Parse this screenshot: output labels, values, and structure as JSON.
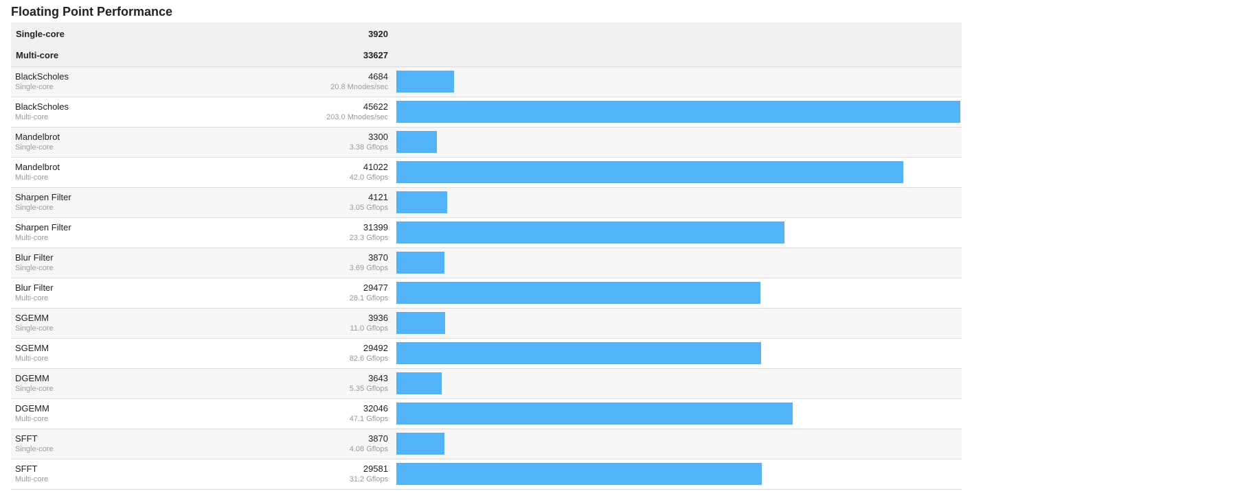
{
  "page": {
    "title": "Floating Point Performance"
  },
  "summary": [
    {
      "label": "Single-core",
      "score": "3920"
    },
    {
      "label": "Multi-core",
      "score": "33627"
    }
  ],
  "benchmarks": [
    {
      "name": "BlackScholes",
      "mode": "Single-core",
      "score": "4684",
      "detail": "20.8 Mnodes/sec",
      "score_value": 4684
    },
    {
      "name": "BlackScholes",
      "mode": "Multi-core",
      "score": "45622",
      "detail": "203.0 Mnodes/sec",
      "score_value": 45622
    },
    {
      "name": "Mandelbrot",
      "mode": "Single-core",
      "score": "3300",
      "detail": "3.38 Gflops",
      "score_value": 3300
    },
    {
      "name": "Mandelbrot",
      "mode": "Multi-core",
      "score": "41022",
      "detail": "42.0 Gflops",
      "score_value": 41022
    },
    {
      "name": "Sharpen Filter",
      "mode": "Single-core",
      "score": "4121",
      "detail": "3.05 Gflops",
      "score_value": 4121
    },
    {
      "name": "Sharpen Filter",
      "mode": "Multi-core",
      "score": "31399",
      "detail": "23.3 Gflops",
      "score_value": 31399
    },
    {
      "name": "Blur Filter",
      "mode": "Single-core",
      "score": "3870",
      "detail": "3.69 Gflops",
      "score_value": 3870
    },
    {
      "name": "Blur Filter",
      "mode": "Multi-core",
      "score": "29477",
      "detail": "28.1 Gflops",
      "score_value": 29477
    },
    {
      "name": "SGEMM",
      "mode": "Single-core",
      "score": "3936",
      "detail": "11.0 Gflops",
      "score_value": 3936
    },
    {
      "name": "SGEMM",
      "mode": "Multi-core",
      "score": "29492",
      "detail": "82.6 Gflops",
      "score_value": 29492
    },
    {
      "name": "DGEMM",
      "mode": "Single-core",
      "score": "3643",
      "detail": "5.35 Gflops",
      "score_value": 3643
    },
    {
      "name": "DGEMM",
      "mode": "Multi-core",
      "score": "32046",
      "detail": "47.1 Gflops",
      "score_value": 32046
    },
    {
      "name": "SFFT",
      "mode": "Single-core",
      "score": "3870",
      "detail": "4.08 Gflops",
      "score_value": 3870
    },
    {
      "name": "SFFT",
      "mode": "Multi-core",
      "score": "29581",
      "detail": "31.2 Gflops",
      "score_value": 29581
    }
  ],
  "colors": {
    "bar": "#52b3f9",
    "summary_bg": "#f0f0f0",
    "alt_row_bg": "#f7f7f7",
    "divider": "#dcdcdc",
    "secondary_text": "#999999"
  }
}
